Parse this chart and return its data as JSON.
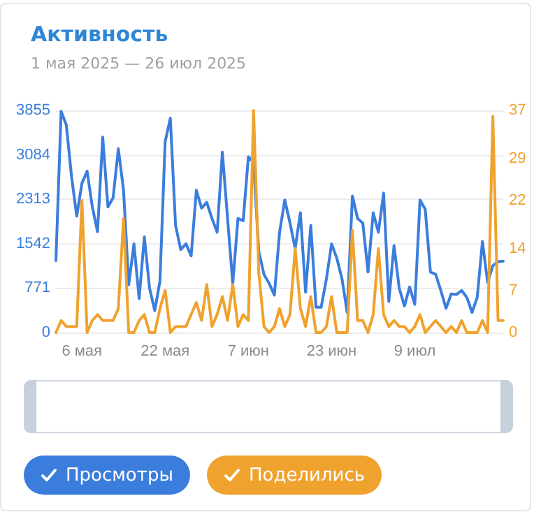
{
  "chart_data": {
    "type": "line",
    "title": "Активность",
    "subtitle": "1 мая 2025 — 26 июл 2025",
    "x": [
      "2025-05-01",
      "2025-05-02",
      "2025-05-03",
      "2025-05-04",
      "2025-05-05",
      "2025-05-06",
      "2025-05-07",
      "2025-05-08",
      "2025-05-09",
      "2025-05-10",
      "2025-05-11",
      "2025-05-12",
      "2025-05-13",
      "2025-05-14",
      "2025-05-15",
      "2025-05-16",
      "2025-05-17",
      "2025-05-18",
      "2025-05-19",
      "2025-05-20",
      "2025-05-21",
      "2025-05-22",
      "2025-05-23",
      "2025-05-24",
      "2025-05-25",
      "2025-05-26",
      "2025-05-27",
      "2025-05-28",
      "2025-05-29",
      "2025-05-30",
      "2025-05-31",
      "2025-06-01",
      "2025-06-02",
      "2025-06-03",
      "2025-06-04",
      "2025-06-05",
      "2025-06-06",
      "2025-06-07",
      "2025-06-08",
      "2025-06-09",
      "2025-06-10",
      "2025-06-11",
      "2025-06-12",
      "2025-06-13",
      "2025-06-14",
      "2025-06-15",
      "2025-06-16",
      "2025-06-17",
      "2025-06-18",
      "2025-06-19",
      "2025-06-20",
      "2025-06-21",
      "2025-06-22",
      "2025-06-23",
      "2025-06-24",
      "2025-06-25",
      "2025-06-26",
      "2025-06-27",
      "2025-06-28",
      "2025-06-29",
      "2025-06-30",
      "2025-07-01",
      "2025-07-02",
      "2025-07-03",
      "2025-07-04",
      "2025-07-05",
      "2025-07-06",
      "2025-07-07",
      "2025-07-08",
      "2025-07-09",
      "2025-07-10",
      "2025-07-11",
      "2025-07-12",
      "2025-07-13",
      "2025-07-14",
      "2025-07-15",
      "2025-07-16",
      "2025-07-17",
      "2025-07-18",
      "2025-07-19",
      "2025-07-20",
      "2025-07-21",
      "2025-07-22",
      "2025-07-23",
      "2025-07-24",
      "2025-07-25",
      "2025-07-26"
    ],
    "series": [
      {
        "name": "Просмотры",
        "color": "#3b7ddd",
        "values": [
          1250,
          3840,
          3600,
          2710,
          2020,
          2590,
          2800,
          2180,
          1750,
          3390,
          2180,
          2340,
          3190,
          2470,
          830,
          1540,
          590,
          1660,
          770,
          380,
          890,
          3310,
          3720,
          1860,
          1440,
          1540,
          1330,
          2470,
          2160,
          2260,
          1980,
          1740,
          3130,
          1980,
          850,
          1980,
          1940,
          3050,
          2950,
          1410,
          1010,
          850,
          650,
          1740,
          2300,
          1900,
          1460,
          2080,
          700,
          1860,
          440,
          440,
          930,
          1540,
          1290,
          930,
          350,
          2370,
          1980,
          1900,
          1050,
          2080,
          1740,
          2420,
          540,
          1510,
          770,
          460,
          790,
          490,
          2300,
          2140,
          1050,
          1010,
          730,
          420,
          670,
          660,
          730,
          610,
          350,
          610,
          1580,
          870,
          1160,
          1230,
          1240
        ]
      },
      {
        "name": "Поделились",
        "color": "#f0a22e",
        "axis": "y2",
        "values": [
          0,
          2,
          1,
          1,
          1,
          22,
          0,
          2,
          3,
          2,
          2,
          2,
          4,
          19,
          0,
          0,
          2,
          3,
          0,
          0,
          4,
          7,
          0,
          1,
          1,
          1,
          3,
          5,
          2,
          8,
          1,
          3,
          6,
          2,
          8,
          1,
          3,
          2,
          37,
          10,
          1,
          0,
          1,
          4,
          1,
          3,
          14,
          4,
          1,
          6,
          0,
          0,
          1,
          6,
          0,
          0,
          0,
          17,
          2,
          2,
          0,
          3,
          14,
          3,
          1,
          2,
          1,
          1,
          0,
          1,
          3,
          0,
          1,
          2,
          1,
          0,
          1,
          0,
          2,
          0,
          0,
          0,
          2,
          0,
          36,
          2,
          2
        ]
      }
    ],
    "xlim": [
      "2025-05-01",
      "2025-07-26"
    ],
    "xticks": [
      {
        "value": "2025-05-06",
        "label": "6 мая"
      },
      {
        "value": "2025-05-22",
        "label": "22 мая"
      },
      {
        "value": "2025-06-07",
        "label": "7 июн"
      },
      {
        "value": "2025-06-23",
        "label": "23 июн"
      },
      {
        "value": "2025-07-09",
        "label": "9 июл"
      }
    ],
    "ylim": [
      0,
      3855
    ],
    "yticks": [
      0,
      771,
      1542,
      2313,
      3084,
      3855
    ],
    "y2lim": [
      0,
      37
    ],
    "y2ticks": [
      0,
      7,
      14,
      22,
      29,
      37
    ],
    "grid": "y",
    "legend": "bottom",
    "marker": "none",
    "line_style": "solid"
  }
}
